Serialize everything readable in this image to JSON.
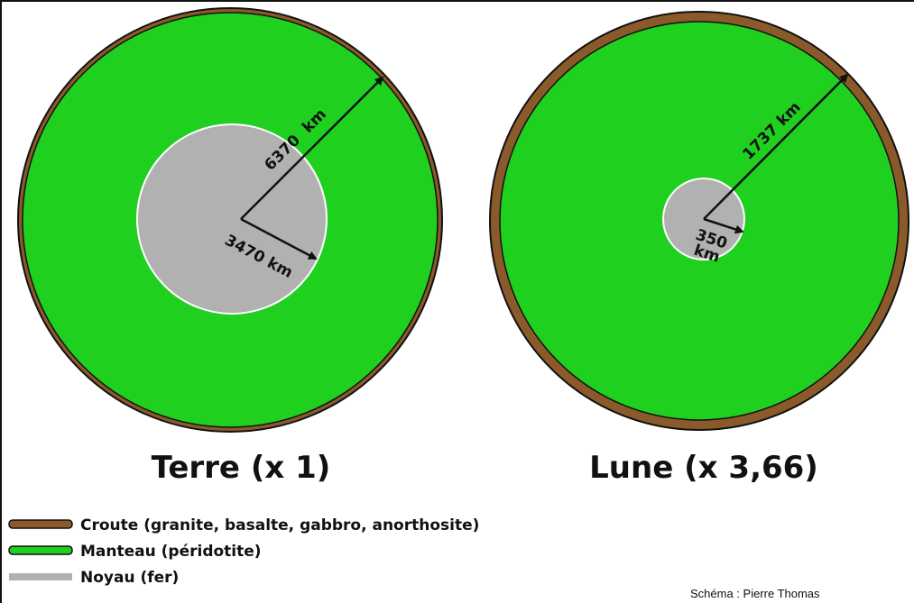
{
  "earth": {
    "radius_label": "6370  km",
    "core_label": "3470 km",
    "title": "Terre (x 1)"
  },
  "moon": {
    "radius_label": "1737 km",
    "core_label_line1": "350",
    "core_label_line2": "km",
    "title": "Lune (x 3,66)"
  },
  "legend": [
    {
      "label": "Croute (granite, basalte, gabbro, anorthosite)"
    },
    {
      "label": "Manteau (péridotite)"
    },
    {
      "label": "Noyau (fer)"
    }
  ],
  "credit": "Schéma : Pierre Thomas"
}
